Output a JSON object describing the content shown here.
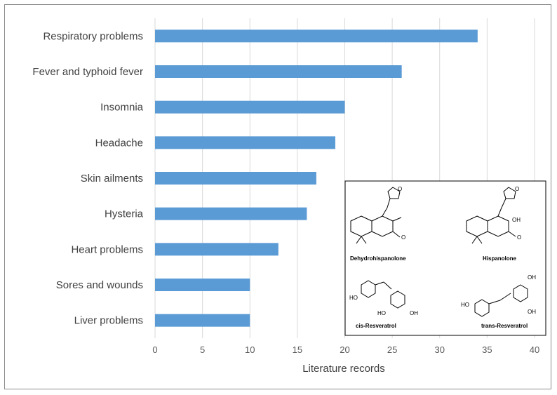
{
  "chart_data": {
    "type": "bar",
    "orientation": "horizontal",
    "categories": [
      "Respiratory problems",
      "Fever and typhoid fever",
      "Insomnia",
      "Headache",
      "Skin ailments",
      "Hysteria",
      "Heart problems",
      "Sores and wounds",
      "Liver problems"
    ],
    "values": [
      34,
      26,
      20,
      19,
      17,
      16,
      13,
      10,
      10
    ],
    "xlabel": "Literature records",
    "xlim": [
      0,
      40
    ],
    "xticks": [
      "0",
      "5",
      "10",
      "15",
      "20",
      "25",
      "30",
      "35",
      "40"
    ],
    "grid": "vertical",
    "bar_color": "#5b9bd5"
  },
  "inset": {
    "compounds": [
      "Dehydrohispanolone",
      "Hispanolone",
      "cis-Resveratrol",
      "trans-Resveratrol"
    ],
    "atoms": {
      "O": "O",
      "OH": "OH",
      "HO": "HO"
    }
  }
}
